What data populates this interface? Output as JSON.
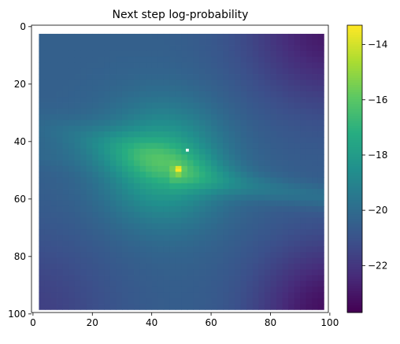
{
  "chart_data": {
    "type": "heatmap",
    "title": "Next step log-probability",
    "xlabel": "",
    "ylabel": "",
    "xlim": [
      -0.5,
      99.5
    ],
    "ylim": [
      99.5,
      -0.5
    ],
    "y_inverted": true,
    "data_extent": {
      "x": [
        2,
        97
      ],
      "y": [
        2.5,
        97.5
      ]
    },
    "x_ticks": [
      0,
      20,
      40,
      60,
      80,
      100
    ],
    "y_ticks": [
      0,
      20,
      40,
      60,
      80,
      100
    ],
    "colormap": "viridis",
    "colorbar": {
      "min": -23.7,
      "max": -13.3,
      "ticks": [
        -14,
        -16,
        -18,
        -20,
        -22
      ],
      "tick_labels": [
        "−14",
        "−16",
        "−18",
        "−20",
        "−22"
      ]
    },
    "description_values": {
      "peak": {
        "x": 49,
        "y": 50,
        "value": -13.3
      },
      "marker": {
        "x": 52,
        "y": 43,
        "color": "#ffffff"
      },
      "background_level": -20.5,
      "ridge_level": -17,
      "corner_minimum": -23.5
    },
    "grid": false
  }
}
